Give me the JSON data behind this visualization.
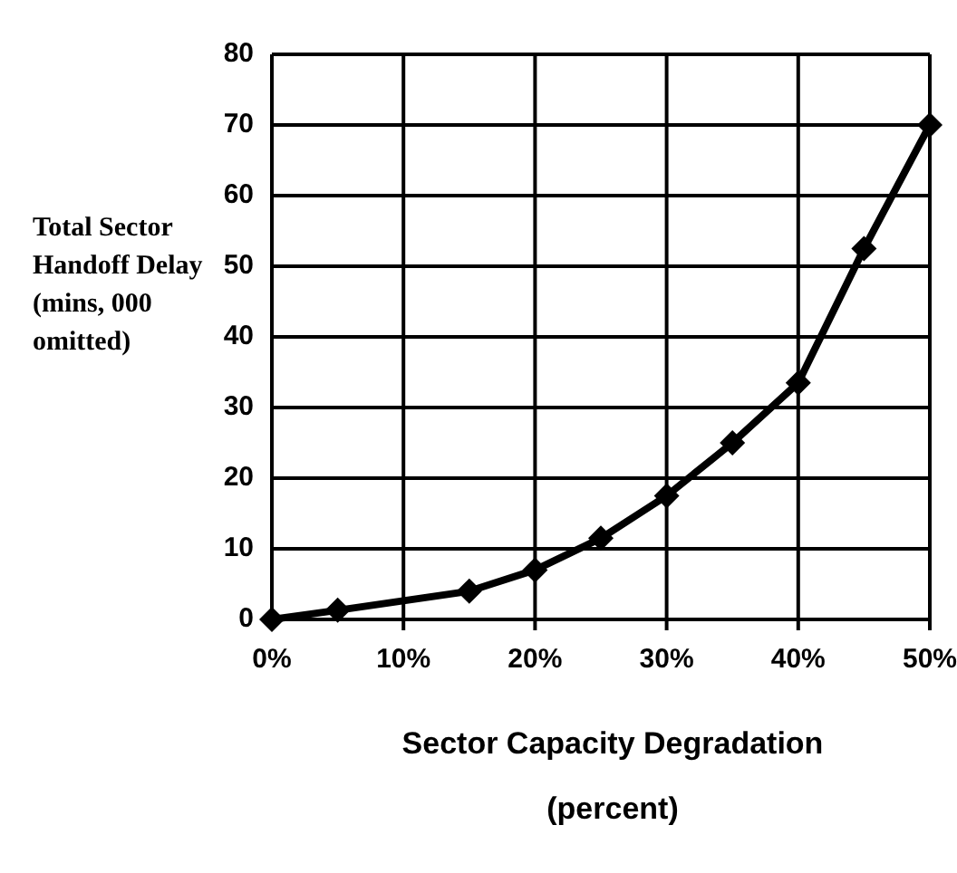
{
  "chart_data": {
    "type": "line",
    "xlabel": "Sector Capacity Degradation (percent)",
    "ylabel": "Total Sector Handoff Delay (mins, 000 omitted)",
    "x": [
      0,
      5,
      15,
      20,
      25,
      30,
      35,
      40,
      45,
      50
    ],
    "series": [
      {
        "color": "#000000",
        "values": [
          0,
          1.3,
          4,
          7,
          11.5,
          17.5,
          25,
          33.5,
          52.5,
          70
        ]
      }
    ],
    "xlim": [
      0,
      50
    ],
    "xticks": [
      {
        "value": 0,
        "label": "0%"
      },
      {
        "value": 10,
        "label": "10%"
      },
      {
        "value": 20,
        "label": "20%"
      },
      {
        "value": 30,
        "label": "30%"
      },
      {
        "value": 40,
        "label": "40%"
      },
      {
        "value": 50,
        "label": "50%"
      }
    ],
    "ylim": [
      0,
      80
    ],
    "yticks": [
      0,
      10,
      20,
      30,
      40,
      50,
      60,
      70,
      80
    ],
    "grid": true,
    "marker": "diamond",
    "line_style": "solid",
    "legend": false
  }
}
